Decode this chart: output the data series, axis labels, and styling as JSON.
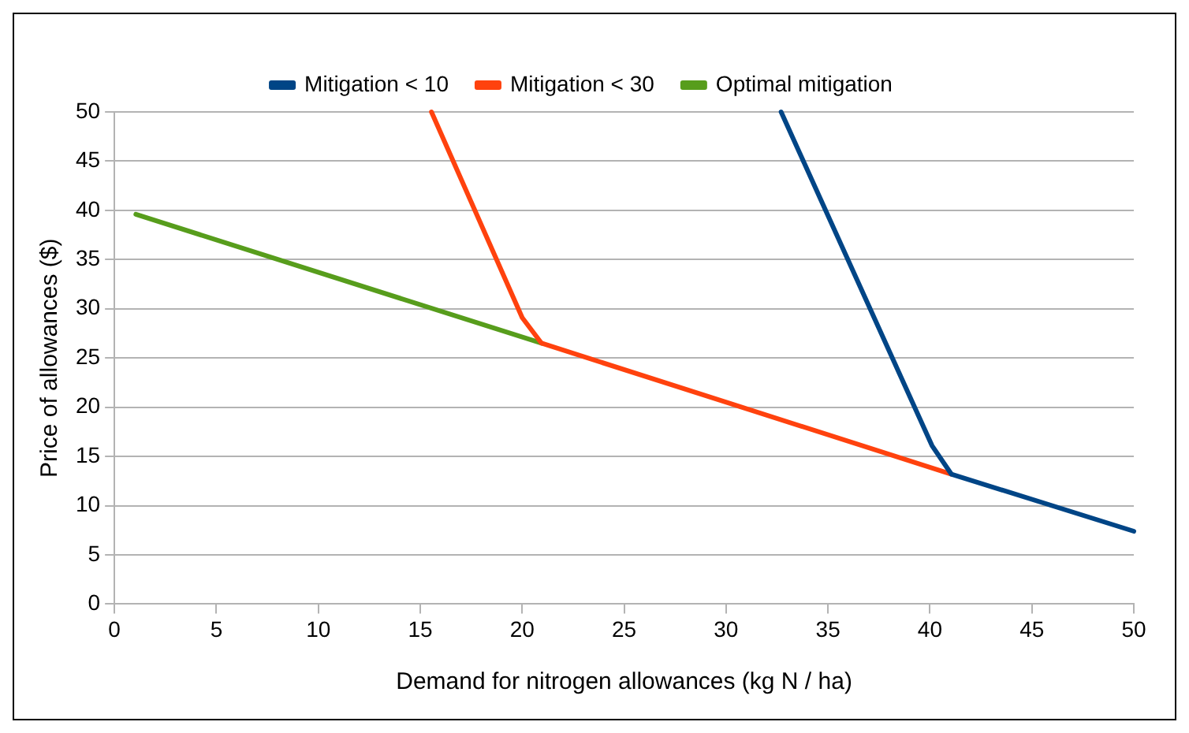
{
  "chart_data": {
    "type": "line",
    "xlabel": "Demand for nitrogen allowances (kg N / ha)",
    "ylabel": "Price of allowances ($)",
    "xlim": [
      0,
      50
    ],
    "xticks": [
      0,
      5,
      10,
      15,
      20,
      25,
      30,
      35,
      40,
      45,
      50
    ],
    "ylim": [
      0,
      50
    ],
    "yticks": [
      0,
      5,
      10,
      15,
      20,
      25,
      30,
      35,
      40,
      45,
      50
    ],
    "grid": "y",
    "legend": "top",
    "marker": "none",
    "line_style": "solid",
    "series": [
      {
        "name": "Mitigation < 10",
        "color": "#004586",
        "x": [
          32.7,
          40.1,
          41.05,
          50
        ],
        "values": [
          50,
          16.1,
          13.2,
          7.4
        ]
      },
      {
        "name": "Mitigation < 30",
        "color": "#ff420e",
        "x": [
          15.55,
          20,
          20.95,
          41.05
        ],
        "values": [
          50,
          29.1,
          26.5,
          13.2
        ]
      },
      {
        "name": "Optimal mitigation",
        "color": "#579d1c",
        "x": [
          1.05,
          20.95
        ],
        "values": [
          39.6,
          26.5
        ]
      }
    ]
  }
}
